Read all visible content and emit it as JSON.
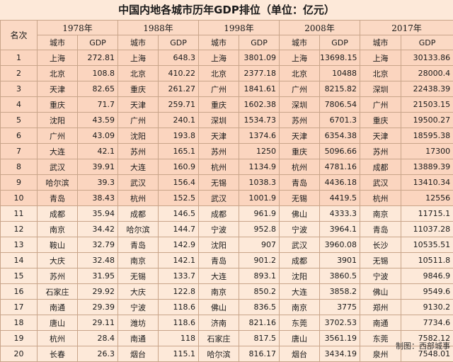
{
  "title": "中国内地各城市历年GDP排位（单位：亿元）",
  "rank_header": "名次",
  "city_header": "城市",
  "gdp_header": "GDP",
  "years": [
    "1978年",
    "1988年",
    "1998年",
    "2008年",
    "2017年"
  ],
  "rows": [
    {
      "rank": "1",
      "cells": [
        [
          "上海",
          "272.81"
        ],
        [
          "上海",
          "648.3"
        ],
        [
          "上海",
          "3801.09"
        ],
        [
          "上海",
          "13698.15"
        ],
        [
          "上海",
          "30133.86"
        ]
      ]
    },
    {
      "rank": "2",
      "cells": [
        [
          "北京",
          "108.8"
        ],
        [
          "北京",
          "410.22"
        ],
        [
          "北京",
          "2377.18"
        ],
        [
          "北京",
          "10488"
        ],
        [
          "北京",
          "28000.4"
        ]
      ]
    },
    {
      "rank": "3",
      "cells": [
        [
          "天津",
          "82.65"
        ],
        [
          "重庆",
          "261.27"
        ],
        [
          "广州",
          "1841.61"
        ],
        [
          "广州",
          "8215.82"
        ],
        [
          "深圳",
          "22438.39"
        ]
      ]
    },
    {
      "rank": "4",
      "cells": [
        [
          "重庆",
          "71.7"
        ],
        [
          "天津",
          "259.71"
        ],
        [
          "重庆",
          "1602.38"
        ],
        [
          "深圳",
          "7806.54"
        ],
        [
          "广州",
          "21503.15"
        ]
      ]
    },
    {
      "rank": "5",
      "cells": [
        [
          "沈阳",
          "43.59"
        ],
        [
          "广州",
          "240.1"
        ],
        [
          "深圳",
          "1534.73"
        ],
        [
          "苏州",
          "6701.3"
        ],
        [
          "重庆",
          "19500.27"
        ]
      ]
    },
    {
      "rank": "6",
      "cells": [
        [
          "广州",
          "43.09"
        ],
        [
          "沈阳",
          "193.8"
        ],
        [
          "天津",
          "1374.6"
        ],
        [
          "天津",
          "6354.38"
        ],
        [
          "天津",
          "18595.38"
        ]
      ]
    },
    {
      "rank": "7",
      "cells": [
        [
          "大连",
          "42.1"
        ],
        [
          "苏州",
          "165.1"
        ],
        [
          "苏州",
          "1250"
        ],
        [
          "重庆",
          "5096.66"
        ],
        [
          "苏州",
          "17300"
        ]
      ]
    },
    {
      "rank": "8",
      "cells": [
        [
          "武汉",
          "39.91"
        ],
        [
          "大连",
          "160.9"
        ],
        [
          "杭州",
          "1134.9"
        ],
        [
          "杭州",
          "4781.16"
        ],
        [
          "成都",
          "13889.39"
        ]
      ]
    },
    {
      "rank": "9",
      "cells": [
        [
          "哈尔滨",
          "39.3"
        ],
        [
          "武汉",
          "156.4"
        ],
        [
          "无锡",
          "1038.3"
        ],
        [
          "青岛",
          "4436.18"
        ],
        [
          "武汉",
          "13410.34"
        ]
      ]
    },
    {
      "rank": "10",
      "cells": [
        [
          "青岛",
          "38.43"
        ],
        [
          "杭州",
          "152.5"
        ],
        [
          "武汉",
          "1001.9"
        ],
        [
          "无锡",
          "4419.5"
        ],
        [
          "杭州",
          "12556"
        ]
      ]
    },
    {
      "rank": "11",
      "cells": [
        [
          "成都",
          "35.94"
        ],
        [
          "成都",
          "146.5"
        ],
        [
          "成都",
          "961.9"
        ],
        [
          "佛山",
          "4333.3"
        ],
        [
          "南京",
          "11715.1"
        ]
      ]
    },
    {
      "rank": "12",
      "cells": [
        [
          "南京",
          "34.42"
        ],
        [
          "哈尔滨",
          "144.7"
        ],
        [
          "宁波",
          "952.8"
        ],
        [
          "宁波",
          "3964.1"
        ],
        [
          "青岛",
          "11037.28"
        ]
      ]
    },
    {
      "rank": "13",
      "cells": [
        [
          "鞍山",
          "32.79"
        ],
        [
          "青岛",
          "142.9"
        ],
        [
          "沈阳",
          "907"
        ],
        [
          "武汉",
          "3960.08"
        ],
        [
          "长沙",
          "10535.51"
        ]
      ]
    },
    {
      "rank": "14",
      "cells": [
        [
          "大庆",
          "32.48"
        ],
        [
          "南京",
          "142.1"
        ],
        [
          "青岛",
          "901.2"
        ],
        [
          "成都",
          "3901"
        ],
        [
          "无锡",
          "10511.8"
        ]
      ]
    },
    {
      "rank": "15",
      "cells": [
        [
          "苏州",
          "31.95"
        ],
        [
          "无锡",
          "133.7"
        ],
        [
          "大连",
          "893.1"
        ],
        [
          "沈阳",
          "3860.5"
        ],
        [
          "宁波",
          "9846.9"
        ]
      ]
    },
    {
      "rank": "16",
      "cells": [
        [
          "石家庄",
          "29.92"
        ],
        [
          "大庆",
          "122.8"
        ],
        [
          "南京",
          "850.2"
        ],
        [
          "大连",
          "3858.2"
        ],
        [
          "佛山",
          "9549.6"
        ]
      ]
    },
    {
      "rank": "17",
      "cells": [
        [
          "南通",
          "29.39"
        ],
        [
          "宁波",
          "118.6"
        ],
        [
          "佛山",
          "836.5"
        ],
        [
          "南京",
          "3775"
        ],
        [
          "郑州",
          "9130.2"
        ]
      ]
    },
    {
      "rank": "18",
      "cells": [
        [
          "唐山",
          "29.11"
        ],
        [
          "潍坊",
          "118.6"
        ],
        [
          "济南",
          "821.16"
        ],
        [
          "东莞",
          "3702.53"
        ],
        [
          "南通",
          "7734.6"
        ]
      ]
    },
    {
      "rank": "19",
      "cells": [
        [
          "杭州",
          "28.4"
        ],
        [
          "南通",
          "118"
        ],
        [
          "石家庄",
          "817.5"
        ],
        [
          "唐山",
          "3561.19"
        ],
        [
          "东莞",
          "7582.12"
        ]
      ]
    },
    {
      "rank": "20",
      "cells": [
        [
          "长春",
          "26.3"
        ],
        [
          "烟台",
          "115.1"
        ],
        [
          "哈尔滨",
          "816.17"
        ],
        [
          "烟台",
          "3434.19"
        ],
        [
          "泉州",
          "7548.01"
        ]
      ]
    }
  ],
  "footer_note": "制图：西部城事"
}
